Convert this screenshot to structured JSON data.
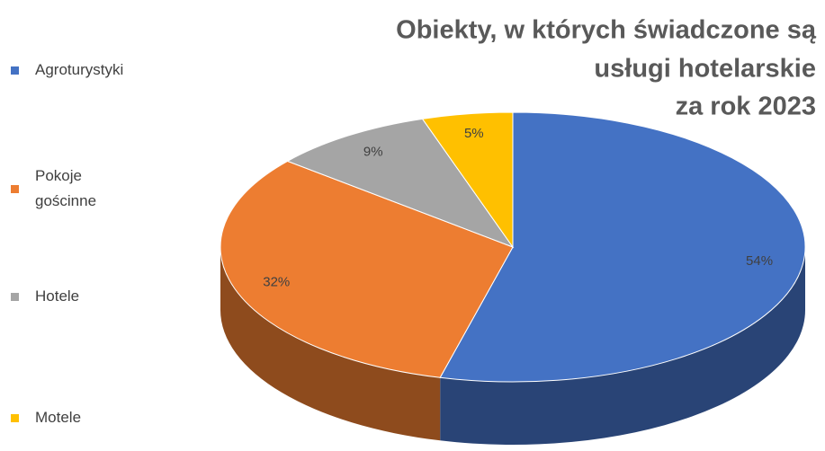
{
  "chart_data": {
    "type": "pie",
    "title": [
      "Obiekty, w których świadczone są",
      "usługi hotelarskie",
      "za rok 2023"
    ],
    "categories": [
      "Agroturystyki",
      "Pokoje gościnne",
      "Hotele",
      "Motele"
    ],
    "values": [
      54,
      32,
      9,
      5
    ],
    "value_labels": [
      "54%",
      "32%",
      "9%",
      "5%"
    ],
    "colors": [
      "#4472c4",
      "#ed7d31",
      "#a5a5a5",
      "#ffc000"
    ],
    "legend": "left"
  }
}
